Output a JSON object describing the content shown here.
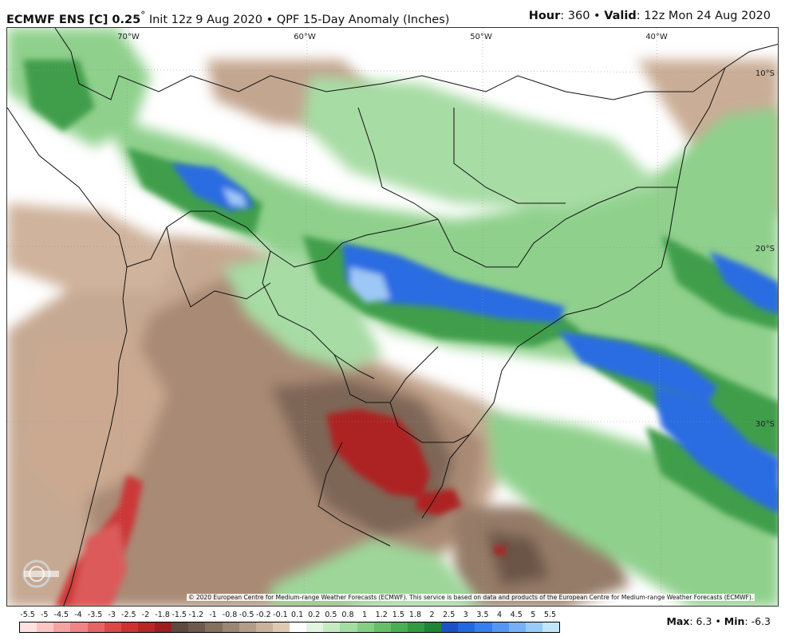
{
  "header": {
    "model": "ECMWF ENS [C] 0.25",
    "degree": "°",
    "init": "Init 12z 9 Aug 2020",
    "bullet": "•",
    "product": "QPF 15-Day Anomaly (Inches)",
    "hour_label": "Hour",
    "hour_value": ": 360",
    "valid_label": "Valid",
    "valid_value": ": 12z Mon 24 Aug 2020"
  },
  "map": {
    "lon_labels": [
      "70°W",
      "60°W",
      "50°W",
      "40°W"
    ],
    "lat_labels": [
      "10°S",
      "20°S",
      "30°S"
    ]
  },
  "copyright": "© 2020 European Centre for Medium-range Weather Forecasts (ECMWF). This service is based on data and products of the European Centre for Medium-range Weather Forecasts (ECMWF).",
  "logo_text": "WEATHERBELL",
  "colorbar": {
    "labels": [
      "-5.5",
      "-5",
      "-4.5",
      "-4",
      "-3.5",
      "-3",
      "-2.5",
      "-2",
      "-1.8",
      "-1.5",
      "-1.2",
      "-1",
      "-0.8",
      "-0.5",
      "-0.2",
      "-0.1",
      "0.1",
      "0.2",
      "0.5",
      "0.8",
      "1",
      "1.2",
      "1.5",
      "1.8",
      "2",
      "2.5",
      "3",
      "3.5",
      "4",
      "4.5",
      "5",
      "5.5"
    ],
    "colors": [
      "#ffe1e1",
      "#fcc4c4",
      "#f6a3a3",
      "#ef8585",
      "#e66464",
      "#dc4747",
      "#cf3131",
      "#b82525",
      "#9c1e1e",
      "#5d4a40",
      "#6e5a4e",
      "#84705f",
      "#9b8573",
      "#b39c88",
      "#cbb29c",
      "#e0c9b3",
      "#ffffff",
      "#e2f5e0",
      "#c4ebc2",
      "#a3dda1",
      "#84cf83",
      "#67bf69",
      "#4aae52",
      "#339a41",
      "#218536",
      "#1b52c6",
      "#2467e3",
      "#357fef",
      "#5597f3",
      "#76b1f5",
      "#98cbf8",
      "#bfe6fb"
    ]
  },
  "stats": {
    "max_label": "Max",
    "max_value": ": 6.3",
    "min_label": "Min",
    "min_value": ": -6.3",
    "bullet": "•"
  }
}
